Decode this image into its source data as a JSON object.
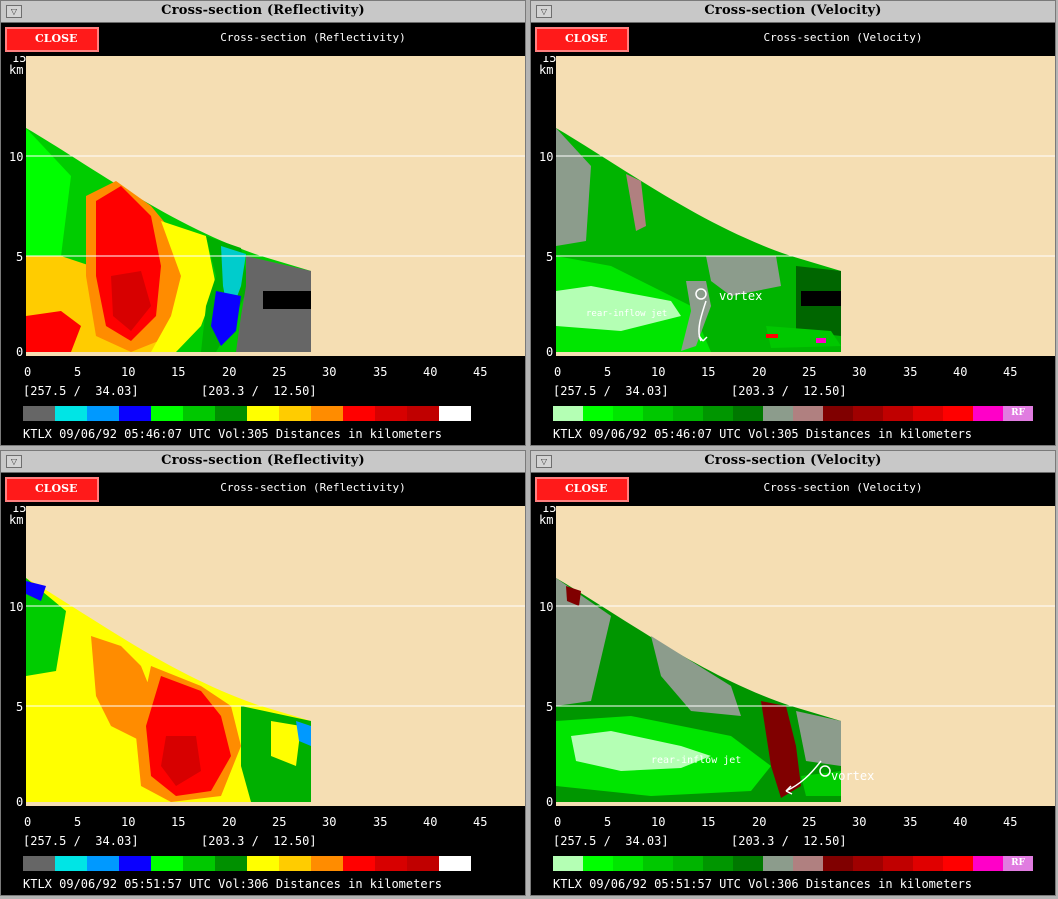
{
  "windows": [
    {
      "title": "Cross-section (Reflectivity)",
      "menu_icon": "window-menu-icon",
      "close_label": "CLOSE",
      "panel_label": "Cross-section (Reflectivity)",
      "coord_left": "[257.5 /  34.03]",
      "coord_right": "[203.3 /  12.50]",
      "status": "KTLX 09/06/92 05:46:07 UTC Vol:305 Distances in kilometers",
      "legend": [
        "#666666",
        "#00e5e5",
        "#0099ff",
        "#0a00ff",
        "#00ff00",
        "#00c800",
        "#009000",
        "#ffff00",
        "#ffcc00",
        "#ff8c00",
        "#ff0000",
        "#d70000",
        "#c00000",
        "#ffffff"
      ],
      "annotations": []
    },
    {
      "title": "Cross-section (Velocity)",
      "menu_icon": "window-menu-icon",
      "close_label": "CLOSE",
      "panel_label": "Cross-section (Velocity)",
      "coord_left": "[257.5 /  34.03]",
      "coord_right": "[203.3 /  12.50]",
      "status": "KTLX 09/06/92 05:46:07 UTC Vol:305 Distances in kilometers",
      "legend": [
        "#b4ffb4",
        "#00ff00",
        "#00e600",
        "#00c800",
        "#00b400",
        "#009600",
        "#007800",
        "#8c9c8c",
        "#b08080",
        "#800000",
        "#a00000",
        "#c00000",
        "#e00000",
        "#ff0000",
        "#ff00c8",
        "#e07ce0"
      ],
      "legend_tail_label": "RF",
      "annotations": [
        "vortex",
        "rear-inflow jet"
      ]
    },
    {
      "title": "Cross-section (Reflectivity)",
      "menu_icon": "window-menu-icon",
      "close_label": "CLOSE",
      "panel_label": "Cross-section (Reflectivity)",
      "coord_left": "[257.5 /  34.03]",
      "coord_right": "[203.3 /  12.50]",
      "status": "KTLX 09/06/92 05:51:57 UTC Vol:306 Distances in kilometers",
      "legend": [
        "#666666",
        "#00e5e5",
        "#0099ff",
        "#0a00ff",
        "#00ff00",
        "#00c800",
        "#009000",
        "#ffff00",
        "#ffcc00",
        "#ff8c00",
        "#ff0000",
        "#d70000",
        "#c00000",
        "#ffffff"
      ],
      "annotations": []
    },
    {
      "title": "Cross-section (Velocity)",
      "menu_icon": "window-menu-icon",
      "close_label": "CLOSE",
      "panel_label": "Cross-section (Velocity)",
      "coord_left": "[257.5 /  34.03]",
      "coord_right": "[203.3 /  12.50]",
      "status": "KTLX 09/06/92 05:51:57 UTC Vol:306 Distances in kilometers",
      "legend": [
        "#b4ffb4",
        "#00ff00",
        "#00e600",
        "#00c800",
        "#00b400",
        "#009600",
        "#007800",
        "#8c9c8c",
        "#b08080",
        "#800000",
        "#a00000",
        "#c00000",
        "#e00000",
        "#ff0000",
        "#ff00c8",
        "#e07ce0"
      ],
      "legend_tail_label": "RF",
      "annotations": [
        "vortex",
        "rear-inflow jet"
      ]
    }
  ],
  "axes": {
    "x_ticks": [
      "0",
      "5",
      "10",
      "15",
      "20",
      "25",
      "30",
      "35",
      "40",
      "45"
    ],
    "y_ticks": [
      "15",
      "10",
      "5",
      "0"
    ],
    "y_unit": "km"
  },
  "colors": {
    "background_tan": "#f5deb3",
    "close_red": "#ff1a1a"
  }
}
